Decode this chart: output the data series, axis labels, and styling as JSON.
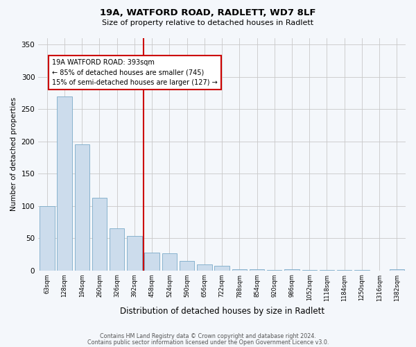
{
  "title1": "19A, WATFORD ROAD, RADLETT, WD7 8LF",
  "title2": "Size of property relative to detached houses in Radlett",
  "xlabel": "Distribution of detached houses by size in Radlett",
  "ylabel": "Number of detached properties",
  "categories": [
    "63sqm",
    "128sqm",
    "194sqm",
    "260sqm",
    "326sqm",
    "392sqm",
    "458sqm",
    "524sqm",
    "590sqm",
    "656sqm",
    "722sqm",
    "788sqm",
    "854sqm",
    "920sqm",
    "986sqm",
    "1052sqm",
    "1118sqm",
    "1184sqm",
    "1250sqm",
    "1316sqm",
    "1382sqm"
  ],
  "values": [
    100,
    270,
    195,
    113,
    65,
    53,
    28,
    27,
    15,
    9,
    7,
    2,
    2,
    1,
    2,
    1,
    1,
    1,
    1,
    0,
    2
  ],
  "bar_color": "#ccdcec",
  "bar_edge_color": "#7aaac8",
  "vline_color": "#cc0000",
  "annotation_line1": "19A WATFORD ROAD: 393sqm",
  "annotation_line2": "← 85% of detached houses are smaller (745)",
  "annotation_line3": "15% of semi-detached houses are larger (127) →",
  "annotation_box_color": "#cc0000",
  "ylim": [
    0,
    360
  ],
  "yticks": [
    0,
    50,
    100,
    150,
    200,
    250,
    300,
    350
  ],
  "footer1": "Contains HM Land Registry data © Crown copyright and database right 2024.",
  "footer2": "Contains public sector information licensed under the Open Government Licence v3.0.",
  "bg_color": "#f4f7fb",
  "plot_bg_color": "#f4f7fb",
  "grid_color": "#c8c8c8"
}
